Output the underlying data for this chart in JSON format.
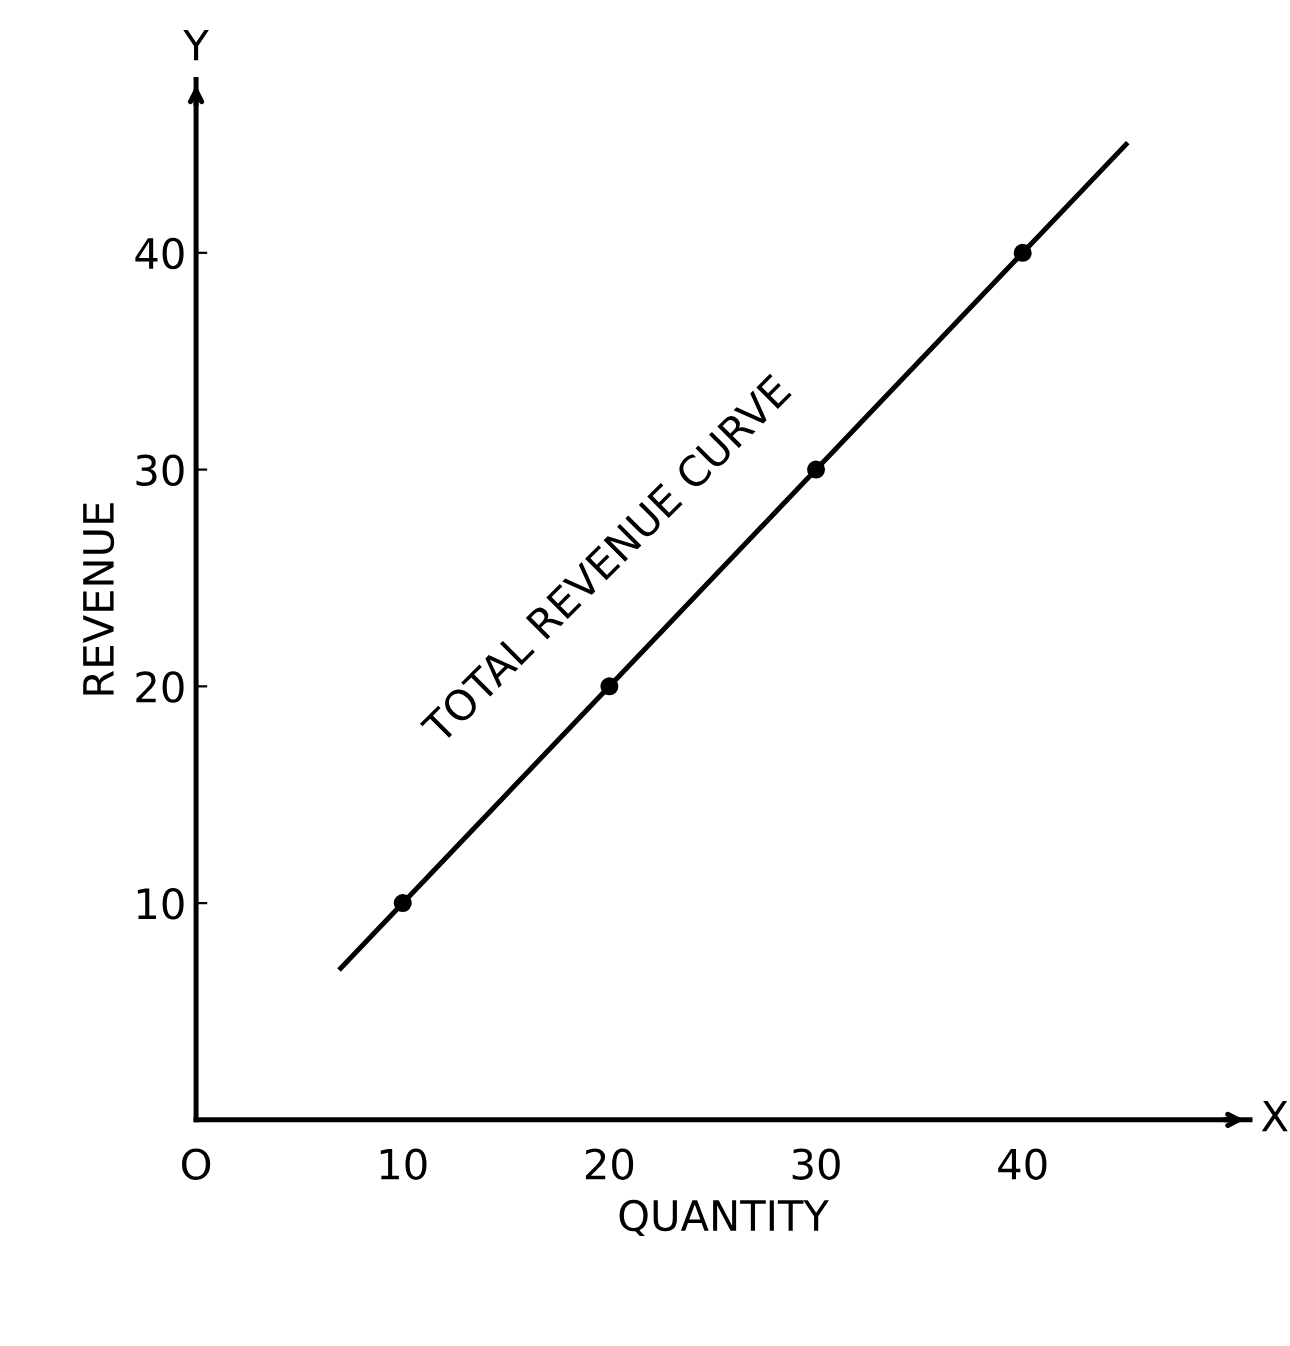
{
  "chart_data": {
    "type": "line",
    "xlabel": "QUANTITY",
    "ylabel": "REVENUE",
    "annotations": [
      "X",
      "Y"
    ],
    "series": [
      {
        "name": "TOTAL REVENUE CURVE",
        "color": "#000000",
        "marker": "none",
        "x": [
          7,
          45
        ],
        "values": [
          7,
          45
        ]
      },
      {
        "type": "scatter",
        "color": "#000000",
        "marker": "circle",
        "x": [
          10,
          20,
          30,
          40
        ],
        "values": [
          10,
          20,
          30,
          40
        ]
      }
    ],
    "xlim": [
      0,
      51
    ],
    "ylim": [
      0,
      48
    ],
    "xticks": [
      {
        "value": 0,
        "label": "O"
      },
      10,
      20,
      30,
      40
    ],
    "yticks": [
      10,
      20,
      30,
      40
    ],
    "grid": false,
    "legend": false,
    "line_style": "solid"
  }
}
